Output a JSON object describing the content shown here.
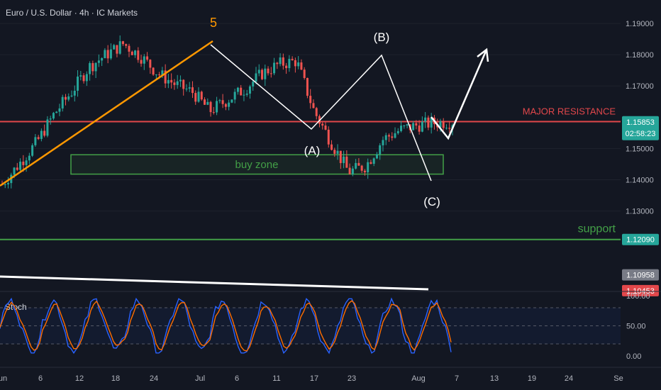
{
  "header": {
    "title": "Euro / U.S. Dollar · 4h · IC Markets"
  },
  "colors": {
    "background": "#131722",
    "up": "#26a69a",
    "down": "#ef5350",
    "resistance": "#e2474b",
    "support": "#43a047",
    "wave": "#ff9800",
    "annotation": "#ffffff",
    "stoch_k": "#2962ff",
    "stoch_d": "#ff6d00"
  },
  "chart_data": {
    "type": "candlestick",
    "symbol": "EURUSD",
    "timeframe": "4h",
    "ylim": [
      1.1045,
      1.1975
    ],
    "y_ticks": [
      "1.19000",
      "1.18000",
      "1.17000",
      "1.15000",
      "1.14000",
      "1.13000"
    ],
    "x_ticks": [
      "un",
      "6",
      "12",
      "18",
      "24",
      "Jul",
      "6",
      "11",
      "17",
      "23",
      "Aug",
      "7",
      "13",
      "19",
      "24",
      "Se"
    ],
    "price_badges": [
      {
        "label": "1.15853",
        "sub": "02:58:23",
        "price": 1.15853,
        "color": "#26a69a"
      },
      {
        "label": "1.12090",
        "price": 1.1209,
        "color": "#26a69a"
      },
      {
        "label": "1.10958",
        "price": 1.10958,
        "color": "#787b86"
      },
      {
        "label": "1.10453",
        "price": 1.10453,
        "color": "#e2474b"
      }
    ],
    "levels": [
      {
        "name": "MAJOR RESISTANCE",
        "price": 1.1586,
        "color": "#e2474b"
      },
      {
        "name": "support",
        "price": 1.1209,
        "color": "#43a047"
      }
    ],
    "zone": {
      "label": "buy zone",
      "top": 1.148,
      "bottom": 1.1418
    },
    "waves": [
      {
        "label": "5",
        "color": "#ff9800"
      },
      {
        "label": "(A)",
        "color": "#ffffff"
      },
      {
        "label": "(B)",
        "color": "#ffffff"
      },
      {
        "label": "(C)",
        "color": "#ffffff"
      }
    ],
    "path_prices": [
      1.1385,
      1.1452,
      1.152,
      1.161,
      1.168,
      1.176,
      1.18,
      1.1835,
      1.1795,
      1.174,
      1.1705,
      1.168,
      1.162,
      1.1655,
      1.169,
      1.174,
      1.177,
      1.178,
      1.162,
      1.152,
      1.1425,
      1.1445,
      1.153,
      1.156,
      1.1575,
      1.1582,
      1.1586
    ],
    "stochastic": {
      "name": "Stoch",
      "ylim": [
        0,
        100
      ],
      "y_ticks": [
        "100.00",
        "50.00",
        "0.00"
      ],
      "bands": [
        80,
        50,
        20
      ]
    }
  }
}
